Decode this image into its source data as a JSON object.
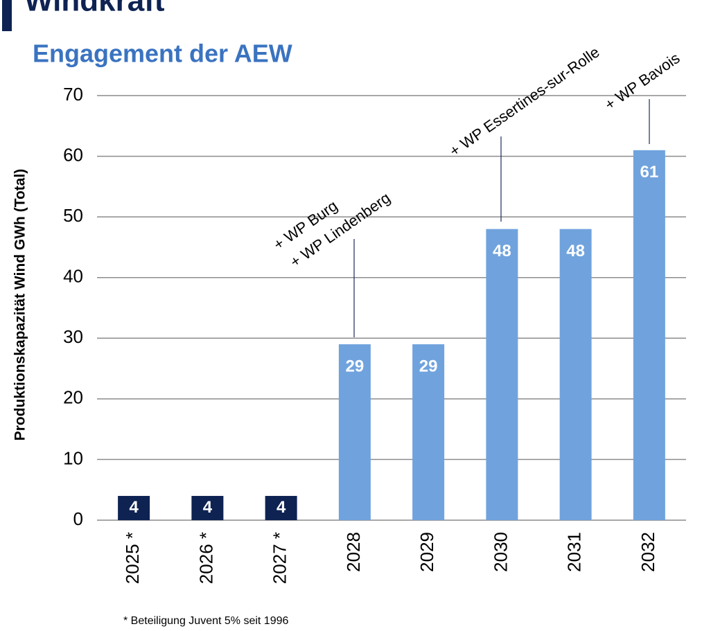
{
  "chart_data": {
    "type": "bar",
    "title": "Windkraft",
    "subtitle": "Engagement der AEW",
    "y_label": "Produktionskapazität Wind GWh (Total)",
    "categories": [
      "2025 *",
      "2026 *",
      "2027 *",
      "2028",
      "2029",
      "2030",
      "2031",
      "2032"
    ],
    "values": [
      4,
      4,
      4,
      29,
      29,
      48,
      48,
      61
    ],
    "colors": [
      "#0e2352",
      "#0e2352",
      "#0e2352",
      "#70a3dd",
      "#70a3dd",
      "#70a3dd",
      "#70a3dd",
      "#70a3dd"
    ],
    "ylim": [
      0,
      70
    ],
    "yticks": [
      0,
      10,
      20,
      30,
      40,
      50,
      60,
      70
    ],
    "grid": true,
    "annotations": [
      [
        "+ WP Burg",
        "+ WP Lindenberg"
      ],
      [
        "+ WP Essertines-sur-Rolle"
      ],
      [
        "+ WP Bavois"
      ]
    ],
    "footnote": "* Beteiligung Juvent 5% seit 1996"
  }
}
